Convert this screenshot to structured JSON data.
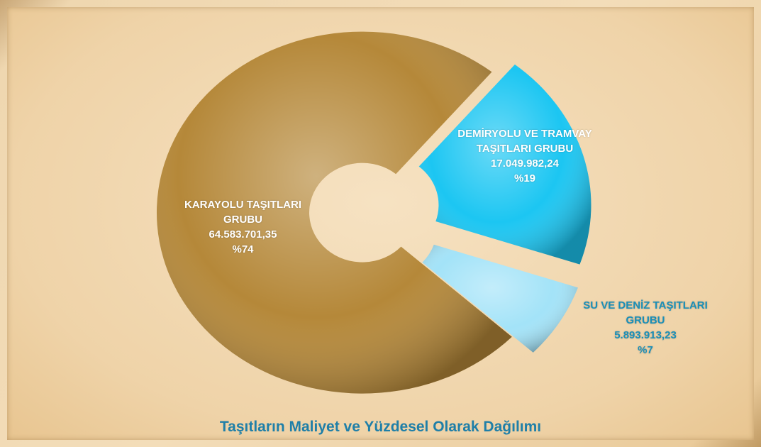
{
  "chart_data": {
    "type": "donut",
    "title": "Taşıtların Maliyet ve Yüzdesel Olarak Dağılımı",
    "categories": [
      "KARAYOLU TAŞITLARI GRUBU",
      "DEMİRYOLU VE TRAMVAY TAŞITLARI GRUBU",
      "SU VE DENİZ TAŞITLARI GRUBU"
    ],
    "values": [
      64583701.35,
      17049982.24,
      5893913.23
    ],
    "value_labels": [
      "64.583.701,35",
      "17.049.982,24",
      "5.893.913,23"
    ],
    "percentages": [
      74,
      19,
      7
    ],
    "percentage_labels": [
      "%74",
      "%19",
      "%7"
    ],
    "colors": [
      "#b58839",
      "#1cc6f2",
      "#a3e3f8"
    ]
  }
}
